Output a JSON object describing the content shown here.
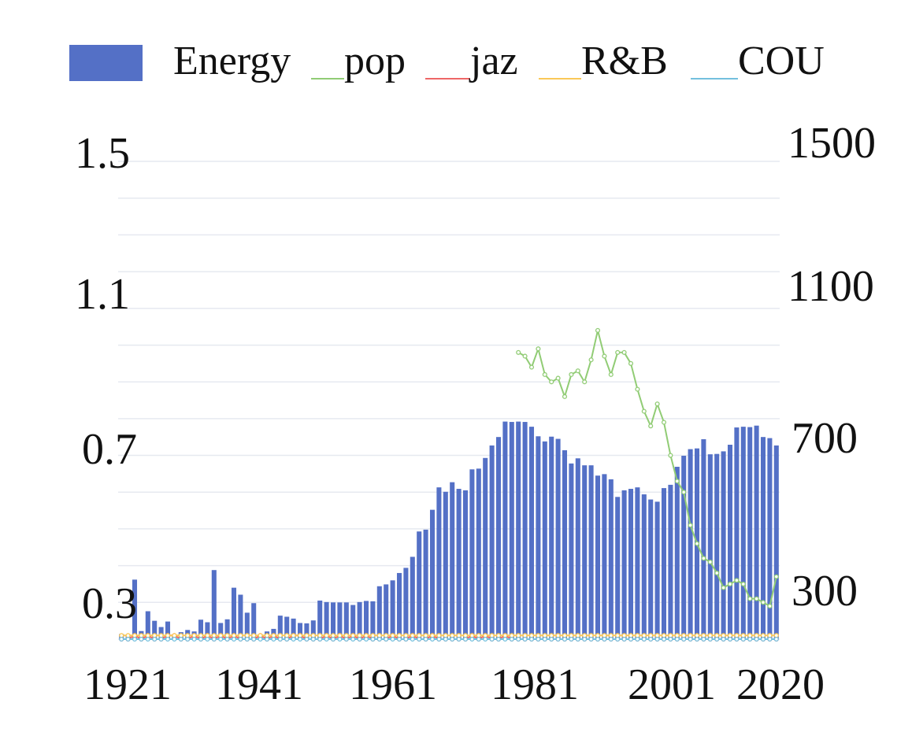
{
  "chart_data": {
    "type": "bar",
    "legend": [
      "Energy",
      "pop",
      "jaz",
      "R&B",
      "COU"
    ],
    "colors": {
      "Energy": "#5470c6",
      "pop": "#91cc75",
      "jaz": "#ee6666",
      "R&B": "#fac858",
      "COU": "#73c0de",
      "grid": "#e6e9f0"
    },
    "x_tick_labels": [
      "1921",
      "1941",
      "1961",
      "1981",
      "2001",
      "2020"
    ],
    "y_left_tick_labels": [
      "1.5",
      "1.1",
      "0.7",
      "0.3"
    ],
    "y_right_tick_labels": [
      "1500",
      "1100",
      "700",
      "300"
    ],
    "y_left_range": [
      0.2,
      1.5
    ],
    "y_right_range": [
      200,
      1500
    ],
    "legend_position": "top",
    "grid": true,
    "x": [
      1921,
      1922,
      1923,
      1924,
      1925,
      1926,
      1927,
      1928,
      1929,
      1930,
      1931,
      1932,
      1933,
      1934,
      1935,
      1936,
      1937,
      1938,
      1939,
      1940,
      1941,
      1942,
      1943,
      1944,
      1945,
      1946,
      1947,
      1948,
      1949,
      1950,
      1951,
      1952,
      1953,
      1954,
      1955,
      1956,
      1957,
      1958,
      1959,
      1960,
      1961,
      1962,
      1963,
      1964,
      1965,
      1966,
      1967,
      1968,
      1969,
      1970,
      1971,
      1972,
      1973,
      1974,
      1975,
      1976,
      1977,
      1978,
      1979,
      1980,
      1981,
      1982,
      1983,
      1984,
      1985,
      1986,
      1987,
      1988,
      1989,
      1990,
      1991,
      1992,
      1993,
      1994,
      1995,
      1996,
      1997,
      1998,
      1999,
      2000,
      2001,
      2002,
      2003,
      2004,
      2005,
      2006,
      2007,
      2008,
      2009,
      2010,
      2011,
      2012,
      2013,
      2014,
      2015,
      2016,
      2017,
      2018,
      2019,
      2020
    ],
    "series": [
      {
        "name": "Energy",
        "type": "bar",
        "axis": "right",
        "values": [
          214,
          212,
          362,
          222,
          276,
          250,
          233,
          248,
          211,
          219,
          225,
          221,
          253,
          246,
          388,
          244,
          254,
          340,
          321,
          272,
          298,
          213,
          221,
          228,
          264,
          261,
          256,
          244,
          243,
          251,
          305,
          301,
          300,
          300,
          300,
          293,
          301,
          304,
          303,
          344,
          349,
          360,
          380,
          394,
          424,
          493,
          498,
          552,
          613,
          601,
          627,
          609,
          605,
          662,
          664,
          693,
          727,
          750,
          792,
          791,
          792,
          791,
          778,
          752,
          738,
          751,
          745,
          714,
          678,
          692,
          673,
          673,
          645,
          649,
          635,
          587,
          605,
          609,
          613,
          594,
          580,
          574,
          611,
          620,
          669,
          699,
          717,
          719,
          744,
          703,
          704,
          711,
          729,
          776,
          778,
          777,
          781,
          750,
          747,
          727
        ]
      },
      {
        "name": "pop",
        "type": "line",
        "axis": "left",
        "values": [
          null,
          null,
          null,
          null,
          null,
          null,
          null,
          null,
          null,
          null,
          null,
          null,
          null,
          null,
          null,
          null,
          null,
          null,
          null,
          null,
          null,
          null,
          null,
          null,
          null,
          null,
          null,
          null,
          null,
          null,
          null,
          null,
          null,
          null,
          null,
          null,
          null,
          null,
          null,
          null,
          null,
          null,
          null,
          null,
          null,
          null,
          null,
          null,
          null,
          null,
          null,
          null,
          null,
          null,
          null,
          null,
          null,
          null,
          null,
          null,
          0.98,
          0.97,
          0.94,
          0.99,
          0.92,
          0.9,
          0.91,
          0.86,
          0.92,
          0.93,
          0.9,
          0.96,
          1.04,
          0.97,
          0.92,
          0.98,
          0.98,
          0.95,
          0.88,
          0.82,
          0.78,
          0.84,
          0.79,
          0.7,
          0.63,
          0.6,
          0.51,
          0.46,
          0.42,
          0.41,
          0.38,
          0.34,
          0.35,
          0.36,
          0.35,
          0.31,
          0.31,
          0.3,
          0.29,
          0.37
        ]
      },
      {
        "name": "jaz",
        "type": "line",
        "axis": "left",
        "values": [
          0.2,
          0.2,
          0.21,
          0.2,
          0.21,
          0.2,
          0.2,
          0.21,
          0.21,
          0.2,
          0.2,
          0.21,
          0.2,
          0.21,
          0.2,
          0.21,
          0.2,
          0.21,
          0.2,
          0.2,
          0.2,
          0.21,
          0.2,
          0.21,
          0.2,
          0.2,
          0.21,
          0.21,
          0.2,
          0.2,
          0.2,
          0.21,
          0.2,
          0.21,
          0.2,
          0.21,
          0.2,
          0.21,
          0.2,
          0.2,
          0.2,
          0.21,
          0.2,
          0.2,
          0.21,
          0.2,
          0.2,
          0.21,
          0.2,
          0.2,
          0.2,
          0.2,
          0.2,
          0.21,
          0.2,
          0.21,
          0.2,
          0.2,
          0.21,
          0.2,
          0.2,
          0.2,
          0.2,
          0.2,
          0.2,
          0.2,
          0.2,
          0.2,
          0.2,
          0.2,
          0.2,
          0.2,
          0.2,
          0.2,
          0.2,
          0.2,
          0.2,
          0.2,
          0.2,
          0.2,
          0.2,
          0.2,
          0.2,
          0.2,
          0.2,
          0.2,
          0.2,
          0.2,
          0.2,
          0.2,
          0.2,
          0.2,
          0.2,
          0.2,
          0.2,
          0.2,
          0.2,
          0.2,
          0.2,
          0.2
        ]
      },
      {
        "name": "R&B",
        "type": "line",
        "axis": "left",
        "values": [
          0.21,
          0.21,
          0.21,
          0.21,
          0.21,
          0.21,
          0.21,
          0.21,
          0.21,
          0.21,
          0.21,
          0.21,
          0.21,
          0.21,
          0.21,
          0.21,
          0.21,
          0.21,
          0.21,
          0.21,
          0.21,
          0.21,
          0.21,
          0.21,
          0.21,
          0.21,
          0.21,
          0.21,
          0.21,
          0.21,
          0.21,
          0.21,
          0.21,
          0.21,
          0.21,
          0.21,
          0.21,
          0.21,
          0.21,
          0.21,
          0.21,
          0.21,
          0.21,
          0.21,
          0.21,
          0.21,
          0.21,
          0.21,
          0.21,
          0.21,
          0.21,
          0.21,
          0.21,
          0.21,
          0.21,
          0.21,
          0.21,
          0.21,
          0.21,
          0.21,
          0.21,
          0.21,
          0.21,
          0.21,
          0.21,
          0.21,
          0.21,
          0.21,
          0.21,
          0.21,
          0.21,
          0.21,
          0.21,
          0.21,
          0.21,
          0.21,
          0.21,
          0.21,
          0.21,
          0.21,
          0.21,
          0.21,
          0.21,
          0.21,
          0.21,
          0.21,
          0.21,
          0.21,
          0.21,
          0.21,
          0.21,
          0.21,
          0.21,
          0.21,
          0.21,
          0.21,
          0.21,
          0.21,
          0.21,
          0.21
        ]
      },
      {
        "name": "COU",
        "type": "line",
        "axis": "left",
        "values": [
          0.2,
          0.2,
          0.2,
          0.2,
          0.2,
          0.2,
          0.2,
          0.2,
          0.2,
          0.2,
          0.2,
          0.2,
          0.2,
          0.2,
          0.2,
          0.2,
          0.2,
          0.2,
          0.2,
          0.2,
          0.2,
          0.2,
          0.2,
          0.2,
          0.2,
          0.2,
          0.2,
          0.2,
          0.2,
          0.2,
          0.2,
          0.2,
          0.2,
          0.2,
          0.2,
          0.2,
          0.2,
          0.2,
          0.2,
          0.2,
          0.2,
          0.2,
          0.2,
          0.2,
          0.2,
          0.2,
          0.2,
          0.2,
          0.2,
          0.2,
          0.2,
          0.2,
          0.2,
          0.2,
          0.2,
          0.2,
          0.2,
          0.2,
          0.2,
          0.2,
          0.2,
          0.2,
          0.2,
          0.2,
          0.2,
          0.2,
          0.2,
          0.2,
          0.2,
          0.2,
          0.2,
          0.2,
          0.2,
          0.2,
          0.2,
          0.2,
          0.2,
          0.2,
          0.2,
          0.2,
          0.2,
          0.2,
          0.2,
          0.2,
          0.2,
          0.2,
          0.2,
          0.2,
          0.2,
          0.2,
          0.2,
          0.2,
          0.2,
          0.2,
          0.2,
          0.2,
          0.2,
          0.2,
          0.2,
          0.2
        ]
      }
    ]
  }
}
